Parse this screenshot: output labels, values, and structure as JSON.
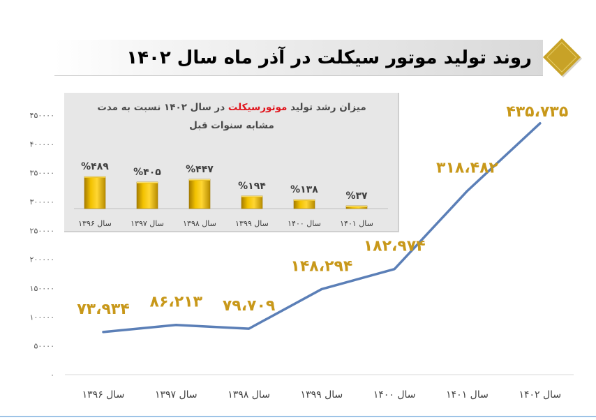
{
  "header": {
    "title": "روند تولید موتور سیکلت در آذر ماه سال ۱۴۰۲"
  },
  "colors": {
    "line": "#5b7fb7",
    "label_gold": "#c8981a",
    "bar_gold": "#e6b400",
    "bar_gold_dark": "#a07a00",
    "diamond": "#c8a227",
    "inset_bg": "#e7e7e7",
    "highlight_red": "#e0141c"
  },
  "chart_data": [
    {
      "type": "line",
      "title": "روند تولید موتور سیکلت در آذر ماه سال ۱۴۰۲",
      "categories": [
        "سال ۱۳۹۶",
        "سال ۱۳۹۷",
        "سال ۱۳۹۸",
        "سال ۱۳۹۹",
        "سال ۱۴۰۰",
        "سال ۱۴۰۱",
        "سال ۱۴۰۲"
      ],
      "values": [
        73934,
        86213,
        79709,
        148294,
        182974,
        318482,
        435735
      ],
      "data_labels": [
        "۷۳،۹۳۴",
        "۸۶،۲۱۳",
        "۷۹،۷۰۹",
        "۱۴۸،۲۹۴",
        "۱۸۲،۹۷۴",
        "۳۱۸،۴۸۲",
        "۴۳۵،۷۳۵"
      ],
      "ylim": [
        0,
        450000
      ],
      "y_ticks": [
        0,
        50000,
        100000,
        150000,
        200000,
        250000,
        300000,
        350000,
        400000,
        450000
      ],
      "y_tick_labels": [
        "۰",
        "۵۰۰۰۰",
        "۱۰۰۰۰۰",
        "۱۵۰۰۰۰",
        "۲۰۰۰۰۰",
        "۲۵۰۰۰۰",
        "۳۰۰۰۰۰",
        "۳۵۰۰۰۰",
        "۴۰۰۰۰۰",
        "۴۵۰۰۰۰"
      ],
      "grid": false,
      "xlabel": "",
      "ylabel": ""
    },
    {
      "type": "bar",
      "title_parts": [
        "میزان رشد تولید ",
        "موتورسیکلت",
        " در سال ۱۴۰۲ نسبت به مدت",
        "مشابه سنوات قبل"
      ],
      "categories": [
        "سال ۱۳۹۶",
        "سال ۱۳۹۷",
        "سال ۱۳۹۸",
        "سال ۱۳۹۹",
        "سال ۱۴۰۰",
        "سال ۱۴۰۱"
      ],
      "values": [
        489,
        405,
        447,
        194,
        138,
        37
      ],
      "data_labels": [
        "%۴۸۹",
        "%۴۰۵",
        "%۴۴۷",
        "%۱۹۴",
        "%۱۳۸",
        "%۳۷"
      ],
      "unit": "%",
      "grid": false
    }
  ]
}
